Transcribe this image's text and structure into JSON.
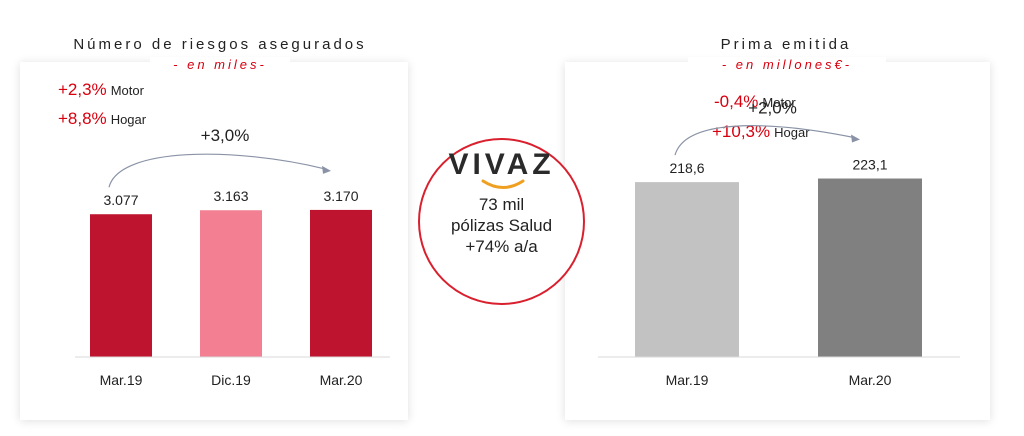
{
  "chart_data": [
    {
      "type": "bar",
      "title": "Número de riesgos asegurados",
      "subtitle": "- en miles-",
      "categories": [
        "Mar.19",
        "Dic.19",
        "Mar.20"
      ],
      "values": [
        3077,
        3163,
        3170
      ],
      "value_labels": [
        "3.077",
        "3.163",
        "3.170"
      ],
      "colors": [
        "#bf1430",
        "#f28092",
        "#bf1430"
      ],
      "growth_arrow": "+3,0%",
      "annotations": [
        {
          "pct": "+2,3%",
          "label": "Motor"
        },
        {
          "pct": "+8,8%",
          "label": "Hogar"
        }
      ],
      "ylim": [
        0,
        5000
      ]
    },
    {
      "type": "bar",
      "title": "Prima emitida",
      "subtitle": "- en millones€-",
      "categories": [
        "Mar.19",
        "Mar.20"
      ],
      "values": [
        218.6,
        223.1
      ],
      "value_labels": [
        "218,6",
        "223,1"
      ],
      "colors": [
        "#c2c2c2",
        "#808080"
      ],
      "growth_arrow": "+2,0%",
      "annotations": [
        {
          "pct": "-0,4%",
          "label": "Motor"
        },
        {
          "pct": "+10,3%",
          "label": "Hogar"
        }
      ],
      "ylim": [
        0,
        360
      ]
    }
  ],
  "vivaz": {
    "logo": "VIVAZ",
    "line1": "73 mil",
    "line2": "pólizas Salud",
    "line3": "+74% a/a",
    "border_color": "#d9202e",
    "smile_color": "#f0a020"
  }
}
